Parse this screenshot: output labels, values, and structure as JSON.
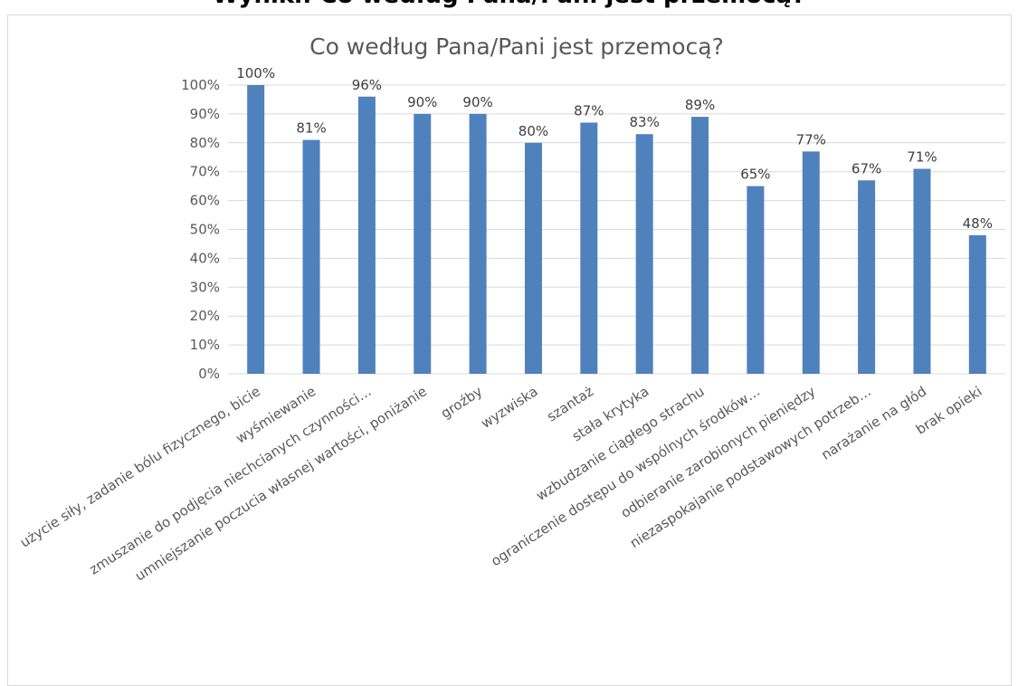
{
  "page": {
    "header": "Wyniki: Co według Pana/Pani jest przemocą?"
  },
  "colors": {
    "bar": "#4f81bd",
    "grid": "#d9d9d9",
    "axis_text": "#595959",
    "title": "#595959",
    "frame": "#d9d9d9"
  },
  "chart_data": {
    "type": "bar",
    "title": "Co według Pana/Pani jest przemocą?",
    "xlabel": "",
    "ylabel": "",
    "ylim": [
      0,
      100
    ],
    "y_ticks": [
      "0%",
      "10%",
      "20%",
      "30%",
      "40%",
      "50%",
      "60%",
      "70%",
      "80%",
      "90%",
      "100%"
    ],
    "grid": true,
    "legend": "none",
    "categories": [
      "użycie siły, zadanie bólu fizycznego, bicie",
      "wyśmiewanie",
      "zmuszanie do podjęcia niechcianych czynności…",
      "umniejszanie poczucia własnej wartości, poniżanie",
      "groźby",
      "wyzwiska",
      "szantaż",
      "stała krytyka",
      "wzbudzanie ciągłego strachu",
      "ograniczenie dostępu do wspólnych środków…",
      "odbieranie zarobionych pieniędzy",
      "niezaspokajanie podstawowych potrzeb…",
      "narażanie na głód",
      "brak opieki"
    ],
    "values": [
      100,
      81,
      96,
      90,
      90,
      80,
      87,
      83,
      89,
      65,
      77,
      67,
      71,
      48
    ],
    "data_labels": [
      "100%",
      "81%",
      "96%",
      "90%",
      "90%",
      "80%",
      "87%",
      "83%",
      "89%",
      "65%",
      "77%",
      "67%",
      "71%",
      "48%"
    ]
  }
}
